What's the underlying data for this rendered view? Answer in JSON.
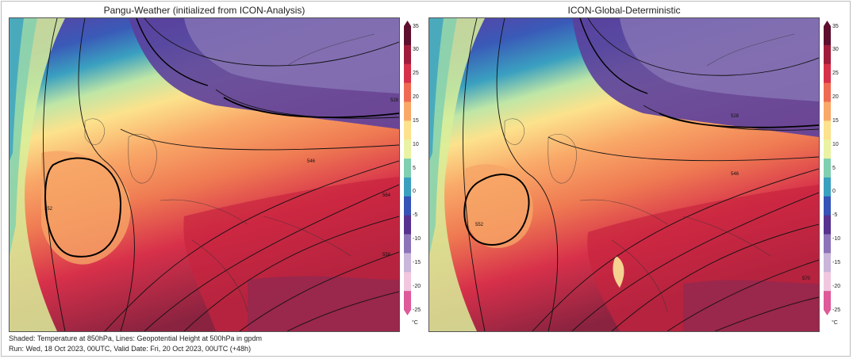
{
  "panels": [
    {
      "title": "Pangu-Weather (initialized from ICON-Analysis)"
    },
    {
      "title": "ICON-Global-Deterministic"
    }
  ],
  "colorbar": {
    "ticks": [
      "35",
      "30",
      "25",
      "20",
      "15",
      "10",
      "5",
      "0",
      "-5",
      "-10",
      "-15",
      "-20",
      "-25"
    ],
    "unit": "°C",
    "range": [
      -25,
      35
    ],
    "colors": [
      "#5e0f2e",
      "#a01c3a",
      "#d7304a",
      "#ef6a52",
      "#f9a868",
      "#fce28c",
      "#e9f3a3",
      "#7fcfb0",
      "#3aa0c0",
      "#3653b8",
      "#57328f",
      "#8d73b8",
      "#c9b6da",
      "#f0c7df",
      "#de5a9a"
    ]
  },
  "contour_labels": {
    "left": [
      "552",
      "564",
      "546",
      "528",
      "558"
    ],
    "right": [
      "552",
      "546",
      "528",
      "570"
    ]
  },
  "footer": {
    "line1": "Shaded: Temperature at 850hPa,  Lines: Geopotential Height at 500hPa in gpdm",
    "line2": "Run:  Wed, 18 Oct 2023, 00UTC,   Valid Date:  Fri, 20 Oct 2023, 00UTC (+48h)"
  }
}
